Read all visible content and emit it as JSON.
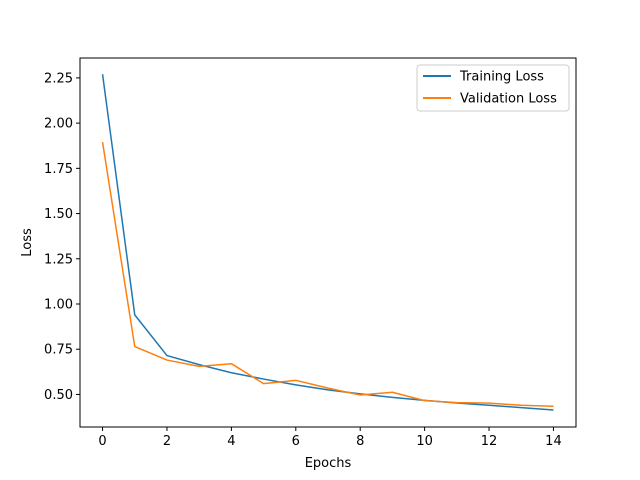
{
  "chart_data": {
    "type": "line",
    "title": "",
    "xlabel": "Epochs",
    "ylabel": "Loss",
    "x": [
      0,
      1,
      2,
      3,
      4,
      5,
      6,
      7,
      8,
      9,
      10,
      11,
      12,
      13,
      14
    ],
    "xlim": [
      -0.7,
      14.7
    ],
    "ylim": [
      0.32,
      2.36
    ],
    "xticks": [
      0,
      2,
      4,
      6,
      8,
      10,
      12,
      14
    ],
    "yticks": [
      0.5,
      0.75,
      1.0,
      1.25,
      1.5,
      1.75,
      2.0,
      2.25
    ],
    "xtick_labels": [
      "0",
      "2",
      "4",
      "6",
      "8",
      "10",
      "12",
      "14"
    ],
    "ytick_labels": [
      "0.50",
      "0.75",
      "1.00",
      "1.25",
      "1.50",
      "1.75",
      "2.00",
      "2.25"
    ],
    "grid": false,
    "legend_position": "top-right",
    "series": [
      {
        "name": "Training Loss",
        "color": "#1f77b4",
        "values": [
          2.27,
          0.94,
          0.715,
          0.665,
          0.62,
          0.585,
          0.553,
          0.525,
          0.503,
          0.484,
          0.467,
          0.453,
          0.44,
          0.427,
          0.414
        ]
      },
      {
        "name": "Validation Loss",
        "color": "#ff7f0e",
        "values": [
          1.895,
          0.765,
          0.69,
          0.655,
          0.67,
          0.56,
          0.578,
          0.535,
          0.497,
          0.512,
          0.466,
          0.455,
          0.452,
          0.44,
          0.435
        ]
      }
    ]
  }
}
